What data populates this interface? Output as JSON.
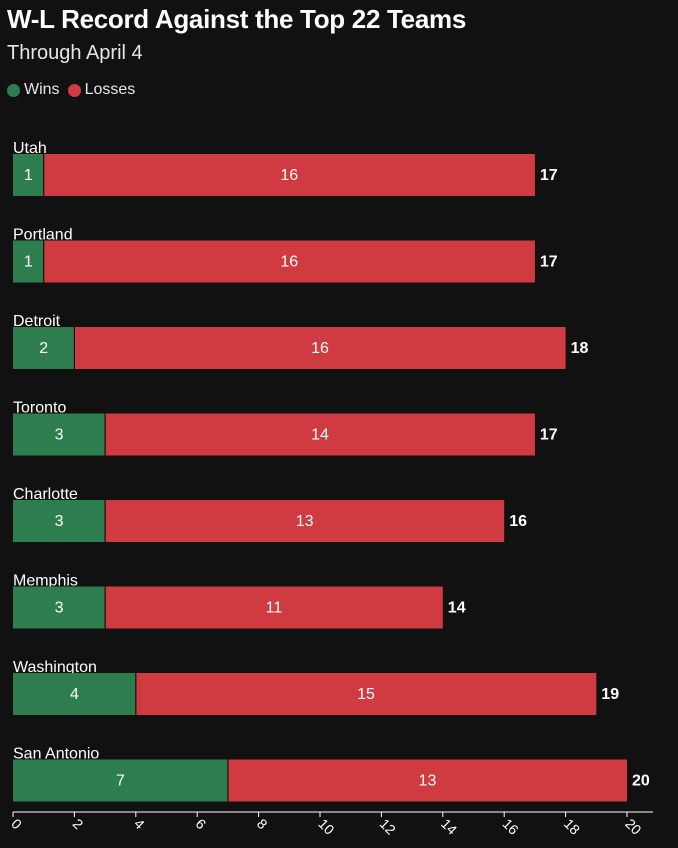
{
  "title": "W-L Record Against the Top 22 Teams",
  "subtitle": "Through April 4",
  "colors": {
    "wins": "#2e7d4f",
    "losses": "#cf3b40",
    "background": "#111111",
    "text": "#ffffff"
  },
  "chart_data": {
    "type": "bar",
    "orientation": "horizontal",
    "stacked": true,
    "title": "W-L Record Against the Top 22 Teams",
    "subtitle": "Through April 4",
    "xlabel": "",
    "ylabel": "",
    "xlim": [
      0,
      20
    ],
    "ticks": [
      0,
      2,
      4,
      6,
      8,
      10,
      12,
      14,
      16,
      18,
      20
    ],
    "legend": {
      "placement": "top-left",
      "entries": [
        "Wins",
        "Losses"
      ]
    },
    "categories": [
      "Utah",
      "Portland",
      "Detroit",
      "Toronto",
      "Charlotte",
      "Memphis",
      "Washington",
      "San Antonio"
    ],
    "series": [
      {
        "name": "Wins",
        "values": [
          1,
          1,
          2,
          3,
          3,
          3,
          4,
          7
        ]
      },
      {
        "name": "Losses",
        "values": [
          16,
          16,
          16,
          14,
          13,
          11,
          15,
          13
        ]
      }
    ],
    "totals": [
      17,
      17,
      18,
      17,
      16,
      14,
      19,
      20
    ]
  }
}
